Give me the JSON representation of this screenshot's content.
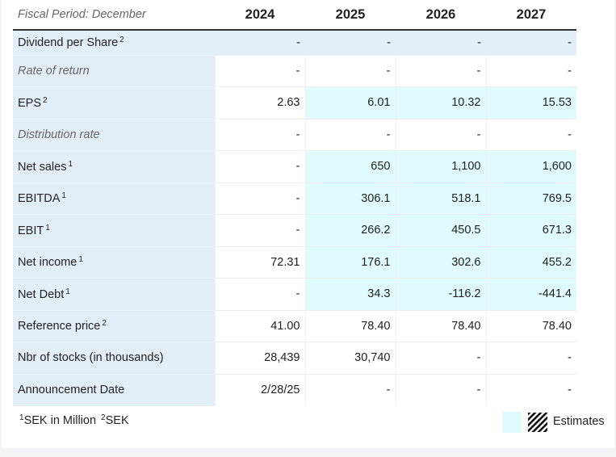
{
  "table": {
    "period_label": "Fiscal Period: December",
    "years": [
      "2024",
      "2025",
      "2026",
      "2027"
    ],
    "rows": [
      {
        "label": "Dividend per Share",
        "sup": "2",
        "italic": false,
        "values": [
          "-",
          "-",
          "-",
          "-"
        ],
        "estimate": [
          false,
          false,
          false,
          false
        ]
      },
      {
        "label": "Rate of return",
        "sup": "",
        "italic": true,
        "values": [
          "-",
          "-",
          "-",
          "-"
        ],
        "estimate": [
          false,
          false,
          false,
          false
        ]
      },
      {
        "label": "EPS",
        "sup": "2",
        "italic": false,
        "values": [
          "2.63",
          "6.01",
          "10.32",
          "15.53"
        ],
        "estimate": [
          false,
          true,
          true,
          true
        ]
      },
      {
        "label": "Distribution rate",
        "sup": "",
        "italic": true,
        "values": [
          "-",
          "-",
          "-",
          "-"
        ],
        "estimate": [
          false,
          false,
          false,
          false
        ]
      },
      {
        "label": "Net sales",
        "sup": "1",
        "italic": false,
        "values": [
          "-",
          "650",
          "1,100",
          "1,600"
        ],
        "estimate": [
          false,
          true,
          true,
          true
        ]
      },
      {
        "label": "EBITDA",
        "sup": "1",
        "italic": false,
        "values": [
          "-",
          "306.1",
          "518.1",
          "769.5"
        ],
        "estimate": [
          false,
          true,
          true,
          true
        ]
      },
      {
        "label": "EBIT",
        "sup": "1",
        "italic": false,
        "values": [
          "-",
          "266.2",
          "450.5",
          "671.3"
        ],
        "estimate": [
          false,
          true,
          true,
          true
        ]
      },
      {
        "label": "Net income",
        "sup": "1",
        "italic": false,
        "values": [
          "72.31",
          "176.1",
          "302.6",
          "455.2"
        ],
        "estimate": [
          false,
          true,
          true,
          true
        ]
      },
      {
        "label": "Net Debt",
        "sup": "1",
        "italic": false,
        "values": [
          "-",
          "34.3",
          "-116.2",
          "-441.4"
        ],
        "estimate": [
          false,
          true,
          true,
          true
        ]
      },
      {
        "label": "Reference price",
        "sup": "2",
        "italic": false,
        "values": [
          "41.00",
          "78.40",
          "78.40",
          "78.40"
        ],
        "estimate": [
          false,
          false,
          false,
          false
        ]
      },
      {
        "label": "Nbr of stocks (in thousands)",
        "sup": "",
        "italic": false,
        "values": [
          "28,439",
          "30,740",
          "-",
          "-"
        ],
        "estimate": [
          false,
          false,
          false,
          false
        ]
      },
      {
        "label": "Announcement Date",
        "sup": "",
        "italic": false,
        "values": [
          "2/28/25",
          "-",
          "-",
          "-"
        ],
        "estimate": [
          false,
          false,
          false,
          false
        ]
      }
    ]
  },
  "footnote": {
    "note1_sup": "1",
    "note1_text": "SEK in Million",
    "note2_sup": "2",
    "note2_text": "SEK"
  },
  "legend": {
    "label": "Estimates",
    "estimate_color": "#e0fbfc"
  }
}
